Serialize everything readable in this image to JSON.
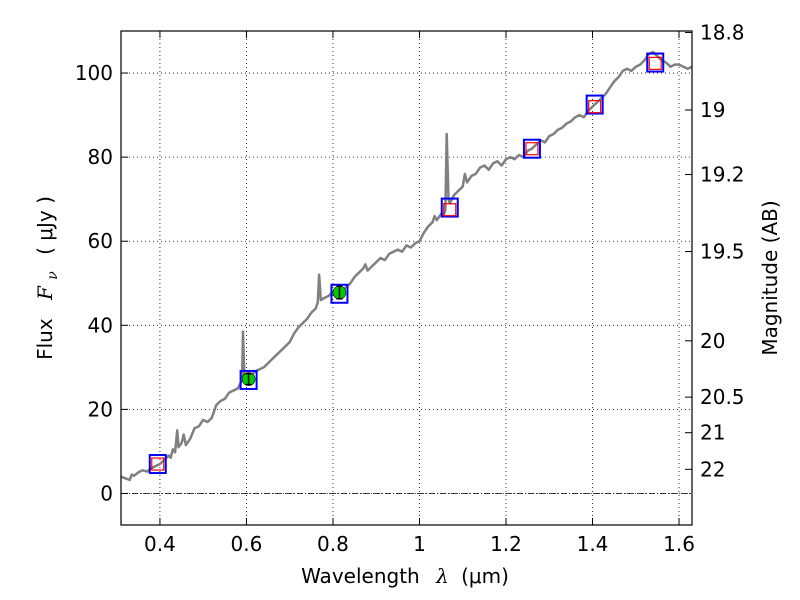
{
  "chart_data": {
    "type": "line",
    "xlabel_text": "Wavelength",
    "xlabel_symbol": "λ",
    "xlabel_unit": "(μm)",
    "ylabel_text": "Flux",
    "ylabel_symbol": "F",
    "ylabel_subscript": "ν",
    "ylabel_unit": "( μJy )",
    "y2label": "Magnitude (AB)",
    "xlim": [
      0.31,
      1.63
    ],
    "ylim": [
      -7.5,
      110
    ],
    "grid": true,
    "x_ticks": [
      {
        "value": 0.4,
        "label": "0.4"
      },
      {
        "value": 0.6,
        "label": "0.6"
      },
      {
        "value": 0.8,
        "label": "0.8"
      },
      {
        "value": 1.0,
        "label": "1"
      },
      {
        "value": 1.2,
        "label": "1.2"
      },
      {
        "value": 1.4,
        "label": "1.4"
      },
      {
        "value": 1.6,
        "label": "1.6"
      }
    ],
    "y_ticks": [
      {
        "value": 0,
        "label": "0"
      },
      {
        "value": 20,
        "label": "20"
      },
      {
        "value": 40,
        "label": "40"
      },
      {
        "value": 60,
        "label": "60"
      },
      {
        "value": 80,
        "label": "80"
      },
      {
        "value": 100,
        "label": "100"
      }
    ],
    "mag_ticks": [
      {
        "value": 18.8,
        "label": "18.8"
      },
      {
        "value": 19,
        "label": "19"
      },
      {
        "value": 19.2,
        "label": "19.2"
      },
      {
        "value": 19.5,
        "label": "19.5"
      },
      {
        "value": 20,
        "label": "20"
      },
      {
        "value": 20.5,
        "label": "20.5"
      },
      {
        "value": 21,
        "label": "21"
      },
      {
        "value": 22,
        "label": "22"
      }
    ],
    "zero_line": 0,
    "colors": {
      "spectrum": "#808080",
      "model_box": "#0000ff",
      "observed_box": "#ff0000",
      "observed_point": "#00cc00"
    },
    "spectrum": [
      [
        0.31,
        4.0
      ],
      [
        0.32,
        3.6
      ],
      [
        0.33,
        3.2
      ],
      [
        0.335,
        4.5
      ],
      [
        0.34,
        4.2
      ],
      [
        0.35,
        5.0
      ],
      [
        0.36,
        5.5
      ],
      [
        0.37,
        5.2
      ],
      [
        0.38,
        6.0
      ],
      [
        0.39,
        6.5
      ],
      [
        0.4,
        7.0
      ],
      [
        0.41,
        8.0
      ],
      [
        0.42,
        9.0
      ],
      [
        0.425,
        8.5
      ],
      [
        0.43,
        10.5
      ],
      [
        0.435,
        9.8
      ],
      [
        0.44,
        15.0
      ],
      [
        0.443,
        11.0
      ],
      [
        0.45,
        12.0
      ],
      [
        0.455,
        14.0
      ],
      [
        0.46,
        11.5
      ],
      [
        0.47,
        13.0
      ],
      [
        0.48,
        15.5
      ],
      [
        0.49,
        16.0
      ],
      [
        0.5,
        17.5
      ],
      [
        0.51,
        17.0
      ],
      [
        0.52,
        18.0
      ],
      [
        0.53,
        21.0
      ],
      [
        0.54,
        22.0
      ],
      [
        0.55,
        22.5
      ],
      [
        0.56,
        24.0
      ],
      [
        0.57,
        24.5
      ],
      [
        0.58,
        25.0
      ],
      [
        0.585,
        26.0
      ],
      [
        0.59,
        27.0
      ],
      [
        0.592,
        38.5
      ],
      [
        0.595,
        28.0
      ],
      [
        0.6,
        27.5
      ],
      [
        0.61,
        28.0
      ],
      [
        0.62,
        29.0
      ],
      [
        0.63,
        29.5
      ],
      [
        0.64,
        30.0
      ],
      [
        0.65,
        31.0
      ],
      [
        0.66,
        32.0
      ],
      [
        0.67,
        33.0
      ],
      [
        0.68,
        34.0
      ],
      [
        0.69,
        35.0
      ],
      [
        0.7,
        36.0
      ],
      [
        0.71,
        38.0
      ],
      [
        0.72,
        39.5
      ],
      [
        0.73,
        40.5
      ],
      [
        0.74,
        41.5
      ],
      [
        0.75,
        43.0
      ],
      [
        0.76,
        44.0
      ],
      [
        0.765,
        45.5
      ],
      [
        0.768,
        52.0
      ],
      [
        0.772,
        46.0
      ],
      [
        0.78,
        46.5
      ],
      [
        0.79,
        47.0
      ],
      [
        0.8,
        48.0
      ],
      [
        0.81,
        47.5
      ],
      [
        0.82,
        48.5
      ],
      [
        0.83,
        49.0
      ],
      [
        0.84,
        50.0
      ],
      [
        0.85,
        51.5
      ],
      [
        0.86,
        52.5
      ],
      [
        0.87,
        53.5
      ],
      [
        0.875,
        54.5
      ],
      [
        0.88,
        53.0
      ],
      [
        0.89,
        54.0
      ],
      [
        0.9,
        55.0
      ],
      [
        0.91,
        56.0
      ],
      [
        0.92,
        55.5
      ],
      [
        0.93,
        57.0
      ],
      [
        0.94,
        57.5
      ],
      [
        0.95,
        58.0
      ],
      [
        0.96,
        57.5
      ],
      [
        0.97,
        59.0
      ],
      [
        0.98,
        58.5
      ],
      [
        0.99,
        59.5
      ],
      [
        1.0,
        60.0
      ],
      [
        1.01,
        62.0
      ],
      [
        1.02,
        63.5
      ],
      [
        1.03,
        64.5
      ],
      [
        1.035,
        66.0
      ],
      [
        1.04,
        65.0
      ],
      [
        1.05,
        66.5
      ],
      [
        1.055,
        66.0
      ],
      [
        1.06,
        67.5
      ],
      [
        1.063,
        85.5
      ],
      [
        1.067,
        70.0
      ],
      [
        1.07,
        69.0
      ],
      [
        1.08,
        71.0
      ],
      [
        1.09,
        72.0
      ],
      [
        1.1,
        73.0
      ],
      [
        1.105,
        76.0
      ],
      [
        1.11,
        74.0
      ],
      [
        1.12,
        75.5
      ],
      [
        1.13,
        76.0
      ],
      [
        1.14,
        77.5
      ],
      [
        1.15,
        78.0
      ],
      [
        1.16,
        77.0
      ],
      [
        1.17,
        78.5
      ],
      [
        1.18,
        79.0
      ],
      [
        1.19,
        78.0
      ],
      [
        1.2,
        79.5
      ],
      [
        1.21,
        80.0
      ],
      [
        1.22,
        79.5
      ],
      [
        1.23,
        80.5
      ],
      [
        1.24,
        80.0
      ],
      [
        1.25,
        81.5
      ],
      [
        1.26,
        82.0
      ],
      [
        1.27,
        83.0
      ],
      [
        1.28,
        84.0
      ],
      [
        1.29,
        83.5
      ],
      [
        1.3,
        85.0
      ],
      [
        1.31,
        85.5
      ],
      [
        1.32,
        86.5
      ],
      [
        1.33,
        87.0
      ],
      [
        1.34,
        88.0
      ],
      [
        1.35,
        88.5
      ],
      [
        1.36,
        89.5
      ],
      [
        1.37,
        90.0
      ],
      [
        1.38,
        89.5
      ],
      [
        1.39,
        91.0
      ],
      [
        1.4,
        92.0
      ],
      [
        1.41,
        93.0
      ],
      [
        1.42,
        94.0
      ],
      [
        1.43,
        95.0
      ],
      [
        1.44,
        96.5
      ],
      [
        1.45,
        98.0
      ],
      [
        1.46,
        99.0
      ],
      [
        1.47,
        100.5
      ],
      [
        1.48,
        101.0
      ],
      [
        1.49,
        100.5
      ],
      [
        1.5,
        101.5
      ],
      [
        1.51,
        102.0
      ],
      [
        1.52,
        103.0
      ],
      [
        1.53,
        104.5
      ],
      [
        1.54,
        105.0
      ],
      [
        1.55,
        104.0
      ],
      [
        1.56,
        103.0
      ],
      [
        1.57,
        102.5
      ],
      [
        1.58,
        101.5
      ],
      [
        1.59,
        102.0
      ],
      [
        1.6,
        102.0
      ],
      [
        1.61,
        101.5
      ],
      [
        1.62,
        101.0
      ],
      [
        1.63,
        101.5
      ]
    ],
    "model_points": [
      {
        "x": 0.395,
        "y": 7.0
      },
      {
        "x": 0.605,
        "y": 27.0
      },
      {
        "x": 0.815,
        "y": 47.5
      },
      {
        "x": 1.07,
        "y": 68.0
      },
      {
        "x": 1.26,
        "y": 82.0
      },
      {
        "x": 1.405,
        "y": 92.5
      },
      {
        "x": 1.545,
        "y": 102.5
      }
    ],
    "observed_points": [
      {
        "x": 0.395,
        "y": 7.0,
        "type": "box"
      },
      {
        "x": 0.605,
        "y": 27.2,
        "type": "circle",
        "err": 1.3
      },
      {
        "x": 0.815,
        "y": 47.8,
        "type": "circle",
        "err": 1.5
      },
      {
        "x": 1.07,
        "y": 67.5,
        "type": "box"
      },
      {
        "x": 1.26,
        "y": 82.0,
        "type": "box"
      },
      {
        "x": 1.405,
        "y": 92.0,
        "type": "box"
      },
      {
        "x": 1.545,
        "y": 102.3,
        "type": "box"
      }
    ]
  }
}
